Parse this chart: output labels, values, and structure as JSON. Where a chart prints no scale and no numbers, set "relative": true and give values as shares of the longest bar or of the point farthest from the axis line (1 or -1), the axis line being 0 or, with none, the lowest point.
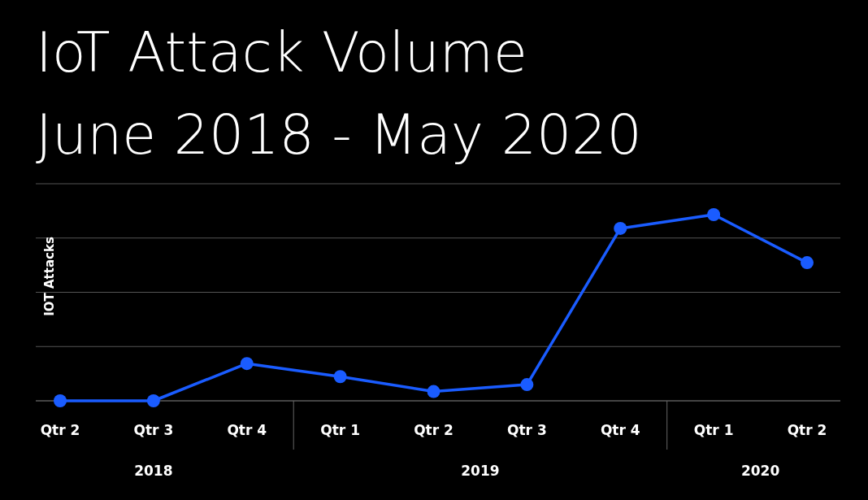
{
  "chart_data": {
    "type": "line",
    "title": "IoT Attack Volume",
    "subtitle": "June 2018 - May 2020",
    "ylabel": "IOT Attacks",
    "relative": true,
    "grid": "y",
    "marker": "circle",
    "line_style": "solid",
    "categories": [
      "Qtr 2",
      "Qtr 3",
      "Qtr 4",
      "Qtr 1",
      "Qtr 2",
      "Qtr 3",
      "Qtr 4",
      "Qtr 1",
      "Qtr 2"
    ],
    "series": [
      {
        "color": "#1a5cff",
        "values": [
          0,
          0,
          0.2,
          0.13,
          0.05,
          0.087,
          0.926,
          1,
          0.742
        ]
      }
    ],
    "annotations": [
      "2018",
      "2019",
      "2020"
    ]
  }
}
